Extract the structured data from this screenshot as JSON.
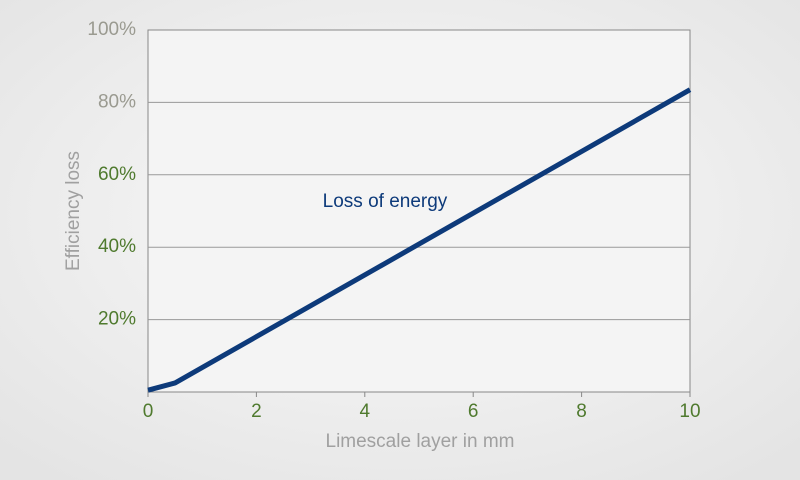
{
  "chart_data": {
    "type": "line",
    "x_label": "Limescale layer in mm",
    "y_label": "Efficiency loss",
    "annotation": "Loss of energy",
    "series": [
      {
        "name": "Loss of energy",
        "color": "#0d3a7a",
        "x": [
          0,
          0.5,
          10
        ],
        "values": [
          0.5,
          2.5,
          83.5
        ]
      }
    ],
    "xlim": [
      0,
      10
    ],
    "xticks": [
      0,
      2,
      4,
      6,
      8,
      10
    ],
    "ylim": [
      0,
      100
    ],
    "yticks": [
      {
        "value": 20,
        "label": "20%"
      },
      {
        "value": 40,
        "label": "40%"
      },
      {
        "value": 60,
        "label": "60%"
      },
      {
        "value": 80,
        "label": "80%"
      },
      {
        "value": 100,
        "label": "100%"
      }
    ],
    "ytick_label_colors": [
      "#4f7a2e",
      "#4f7a2e",
      "#4f7a2e",
      "#9a9a90",
      "#9a9a90"
    ],
    "xtick_label_color": "#4f7a2e",
    "grid": true
  }
}
